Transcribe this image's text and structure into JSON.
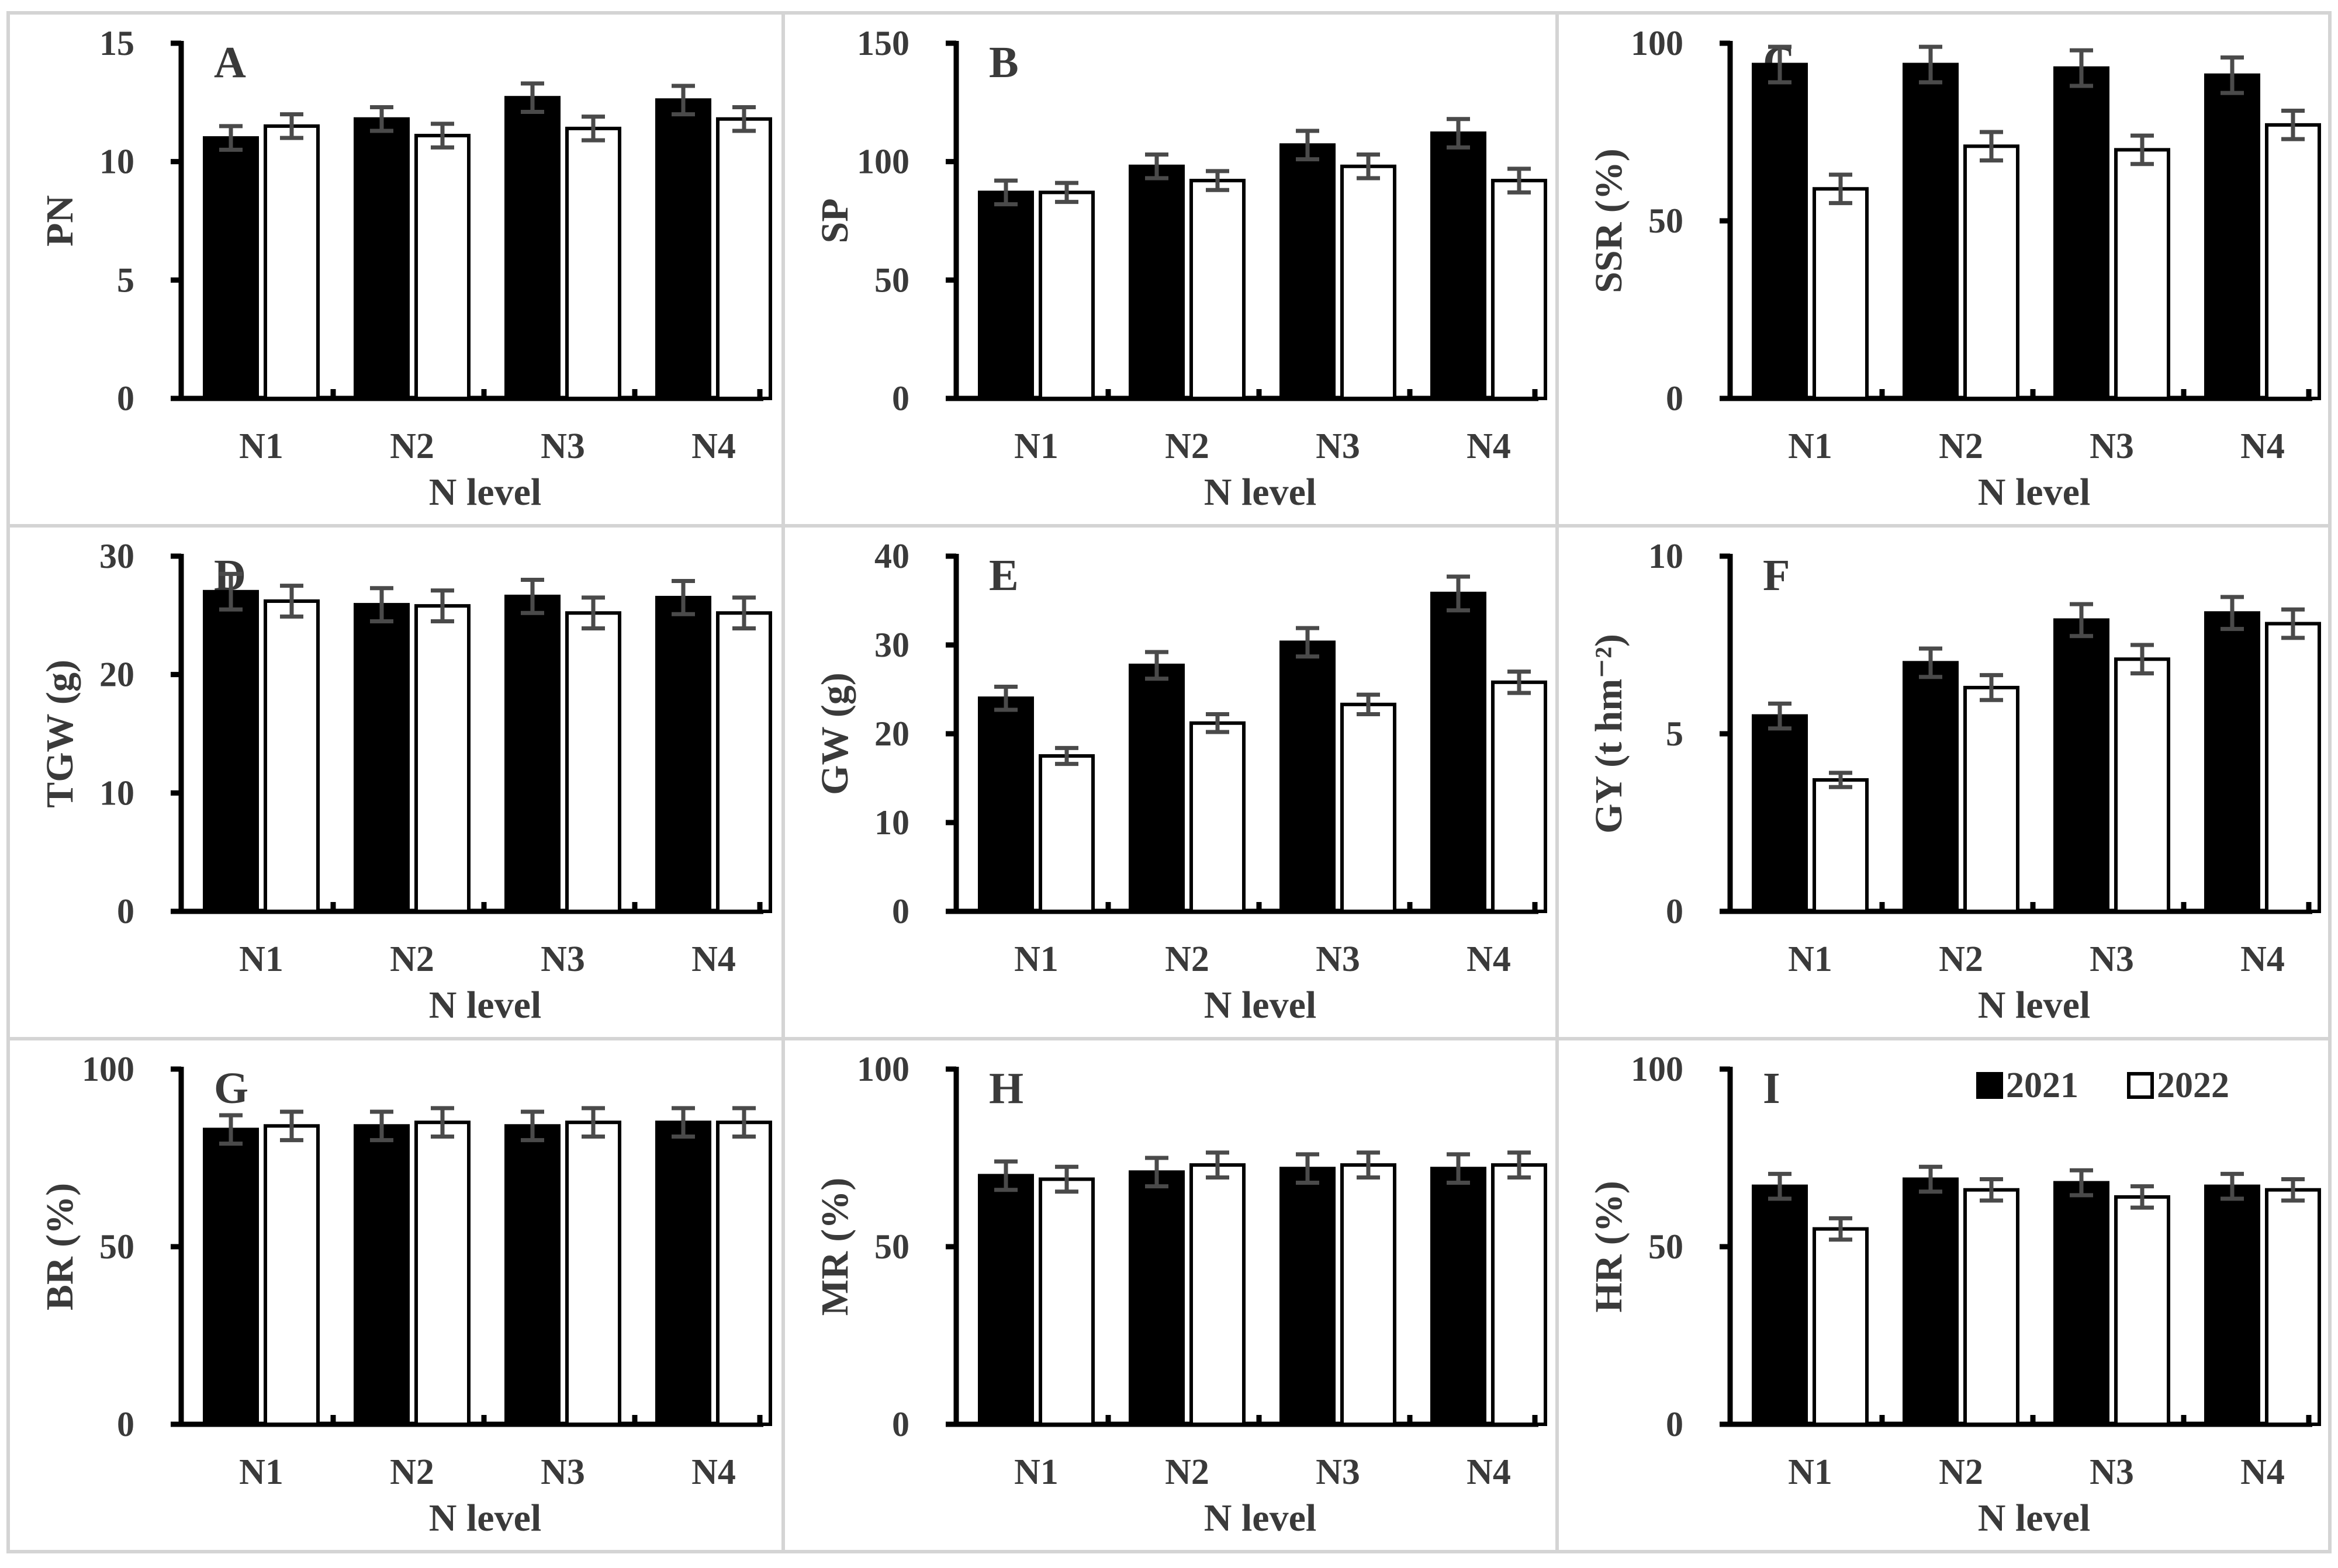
{
  "chart_data": [
    {
      "panel": "A",
      "type": "bar",
      "ylabel": "PN",
      "xlabel": "N level",
      "categories": [
        "N1",
        "N2",
        "N3",
        "N4"
      ],
      "ylim": [
        0,
        15
      ],
      "yticks": [
        "0",
        "5",
        "10",
        "15"
      ],
      "series": [
        {
          "name": "2021",
          "values": [
            11.0,
            11.8,
            12.7,
            12.6
          ],
          "errors": [
            0.5,
            0.5,
            0.6,
            0.6
          ]
        },
        {
          "name": "2022",
          "values": [
            11.5,
            11.1,
            11.4,
            11.8
          ],
          "errors": [
            0.5,
            0.5,
            0.5,
            0.5
          ]
        }
      ]
    },
    {
      "panel": "B",
      "type": "bar",
      "ylabel": "SP",
      "xlabel": "N level",
      "categories": [
        "N1",
        "N2",
        "N3",
        "N4"
      ],
      "ylim": [
        0,
        150
      ],
      "yticks": [
        "0",
        "50",
        "100",
        "150"
      ],
      "series": [
        {
          "name": "2021",
          "values": [
            87,
            98,
            107,
            112
          ],
          "errors": [
            5,
            5,
            6,
            6
          ]
        },
        {
          "name": "2022",
          "values": [
            87,
            92,
            98,
            92
          ],
          "errors": [
            4,
            4,
            5,
            5
          ]
        }
      ]
    },
    {
      "panel": "C",
      "type": "bar",
      "ylabel": "SSR (%)",
      "xlabel": "N level",
      "categories": [
        "N1",
        "N2",
        "N3",
        "N4"
      ],
      "ylim": [
        0,
        100
      ],
      "yticks": [
        "0",
        "50",
        "100"
      ],
      "series": [
        {
          "name": "2021",
          "values": [
            94,
            94,
            93,
            91
          ],
          "errors": [
            5,
            5,
            5,
            5
          ]
        },
        {
          "name": "2022",
          "values": [
            59,
            71,
            70,
            77
          ],
          "errors": [
            4,
            4,
            4,
            4
          ]
        }
      ]
    },
    {
      "panel": "D",
      "type": "bar",
      "ylabel": "TGW (g)",
      "xlabel": "N level",
      "categories": [
        "N1",
        "N2",
        "N3",
        "N4"
      ],
      "ylim": [
        0,
        30
      ],
      "yticks": [
        "0",
        "10",
        "20",
        "30"
      ],
      "series": [
        {
          "name": "2021",
          "values": [
            27.0,
            25.9,
            26.6,
            26.5
          ],
          "errors": [
            1.5,
            1.4,
            1.4,
            1.4
          ]
        },
        {
          "name": "2022",
          "values": [
            26.2,
            25.8,
            25.2,
            25.2
          ],
          "errors": [
            1.3,
            1.3,
            1.3,
            1.3
          ]
        }
      ]
    },
    {
      "panel": "E",
      "type": "bar",
      "ylabel": "GW (g)",
      "xlabel": "N level",
      "categories": [
        "N1",
        "N2",
        "N3",
        "N4"
      ],
      "ylim": [
        0,
        40
      ],
      "yticks": [
        "0",
        "10",
        "20",
        "30",
        "40"
      ],
      "series": [
        {
          "name": "2021",
          "values": [
            24.0,
            27.7,
            30.3,
            35.8
          ],
          "errors": [
            1.3,
            1.5,
            1.6,
            1.9
          ]
        },
        {
          "name": "2022",
          "values": [
            17.5,
            21.2,
            23.3,
            25.8
          ],
          "errors": [
            0.9,
            1.0,
            1.1,
            1.2
          ]
        }
      ]
    },
    {
      "panel": "F",
      "type": "bar",
      "ylabel": "GY (t hm⁻²)",
      "xlabel": "N level",
      "categories": [
        "N1",
        "N2",
        "N3",
        "N4"
      ],
      "ylim": [
        0,
        10
      ],
      "yticks": [
        "0",
        "5",
        "10"
      ],
      "series": [
        {
          "name": "2021",
          "values": [
            5.5,
            7.0,
            8.2,
            8.4
          ],
          "errors": [
            0.35,
            0.4,
            0.45,
            0.45
          ]
        },
        {
          "name": "2022",
          "values": [
            3.7,
            6.3,
            7.1,
            8.1
          ],
          "errors": [
            0.2,
            0.35,
            0.4,
            0.4
          ]
        }
      ]
    },
    {
      "panel": "G",
      "type": "bar",
      "ylabel": "BR (%)",
      "xlabel": "N level",
      "categories": [
        "N1",
        "N2",
        "N3",
        "N4"
      ],
      "ylim": [
        0,
        100
      ],
      "yticks": [
        "0",
        "50",
        "100"
      ],
      "series": [
        {
          "name": "2021",
          "values": [
            83,
            84,
            84,
            85
          ],
          "errors": [
            4,
            4,
            4,
            4
          ]
        },
        {
          "name": "2022",
          "values": [
            84,
            85,
            85,
            85
          ],
          "errors": [
            4,
            4,
            4,
            4
          ]
        }
      ]
    },
    {
      "panel": "H",
      "type": "bar",
      "ylabel": "MR (%)",
      "xlabel": "N level",
      "categories": [
        "N1",
        "N2",
        "N3",
        "N4"
      ],
      "ylim": [
        0,
        100
      ],
      "yticks": [
        "0",
        "50",
        "100"
      ],
      "series": [
        {
          "name": "2021",
          "values": [
            70,
            71,
            72,
            72
          ],
          "errors": [
            4,
            4,
            4,
            4
          ]
        },
        {
          "name": "2022",
          "values": [
            69,
            73,
            73,
            73
          ],
          "errors": [
            3.5,
            3.5,
            3.5,
            3.5
          ]
        }
      ]
    },
    {
      "panel": "I",
      "type": "bar",
      "ylabel": "HR (%)",
      "xlabel": "N level",
      "categories": [
        "N1",
        "N2",
        "N3",
        "N4"
      ],
      "ylim": [
        0,
        100
      ],
      "yticks": [
        "0",
        "50",
        "100"
      ],
      "series": [
        {
          "name": "2021",
          "values": [
            67,
            69,
            68,
            67
          ],
          "errors": [
            3.5,
            3.5,
            3.5,
            3.5
          ]
        },
        {
          "name": "2022",
          "values": [
            55,
            66,
            64,
            66
          ],
          "errors": [
            3,
            3,
            3,
            3
          ]
        }
      ],
      "legend": "top-right"
    }
  ],
  "colors": {
    "2021": "#000000",
    "2022": "#ffffff",
    "error_bar": "#4a4a4a",
    "panel_border": "#d4d4d4"
  }
}
